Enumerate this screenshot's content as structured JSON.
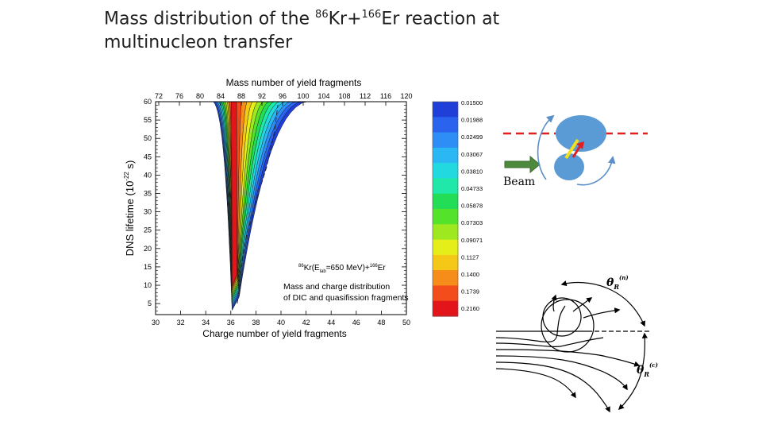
{
  "slide": {
    "title_part1": "Mass distribution of the ",
    "kr_mass": "86",
    "kr_symbol": "Kr+",
    "er_mass": "166",
    "er_symbol": "Er reaction at",
    "title_line2": "multinucleon transfer"
  },
  "chart_data": {
    "type": "heatmap",
    "top_axis_label": "Mass number of yield fragments",
    "xlabel": "Charge number of yield fragments",
    "ylabel": "DNS lifetime (10",
    "ylabel_exp": "-22",
    "ylabel_unit": " s)",
    "x_ticks": [
      "30",
      "32",
      "34",
      "36",
      "38",
      "40",
      "42",
      "44",
      "46",
      "48",
      "50"
    ],
    "top_ticks": [
      "72",
      "76",
      "80",
      "84",
      "88",
      "92",
      "96",
      "100",
      "104",
      "108",
      "112",
      "116",
      "120"
    ],
    "y_ticks": [
      "5",
      "10",
      "15",
      "20",
      "25",
      "30",
      "35",
      "40",
      "45",
      "50",
      "55",
      "60"
    ],
    "xlim": [
      30,
      50
    ],
    "ylim": [
      2,
      60
    ],
    "annotation_line1_a": "86",
    "annotation_line1_b": "Kr(E",
    "annotation_line1_c": "lab",
    "annotation_line1_d": "=650 MeV)+",
    "annotation_line1_e": "166",
    "annotation_line1_f": "Er",
    "annotation_line2": "Mass and charge distribution",
    "annotation_line3": "of DIC and quasifission fragments",
    "colorbar_labels": [
      "0.01500",
      "0.01988",
      "0.02499",
      "0.03067",
      "0.03810",
      "0.04733",
      "0.05878",
      "0.07303",
      "0.09071",
      "0.1127",
      "0.1400",
      "0.1739",
      "0.2160"
    ],
    "colorbar_colors": [
      "#1f3fd8",
      "#2a64ee",
      "#2f8ef6",
      "#2bb6f4",
      "#22d9e0",
      "#1fe8a8",
      "#22dd55",
      "#55e22a",
      "#9ee81f",
      "#e6ee1a",
      "#f5c817",
      "#f68c1a",
      "#f24d1a",
      "#e3141a"
    ]
  },
  "schematic": {
    "beam_label": "Beam",
    "theta_n_label": "θ",
    "theta_n_sub": "R",
    "theta_n_sup": "(n)",
    "theta_c_label": "θ",
    "theta_c_sub": "R",
    "theta_c_sup": "(c)",
    "accent_red": "#e02020",
    "nucleus_blue": "#5b9bd5",
    "beam_green": "#4e8a3e"
  }
}
